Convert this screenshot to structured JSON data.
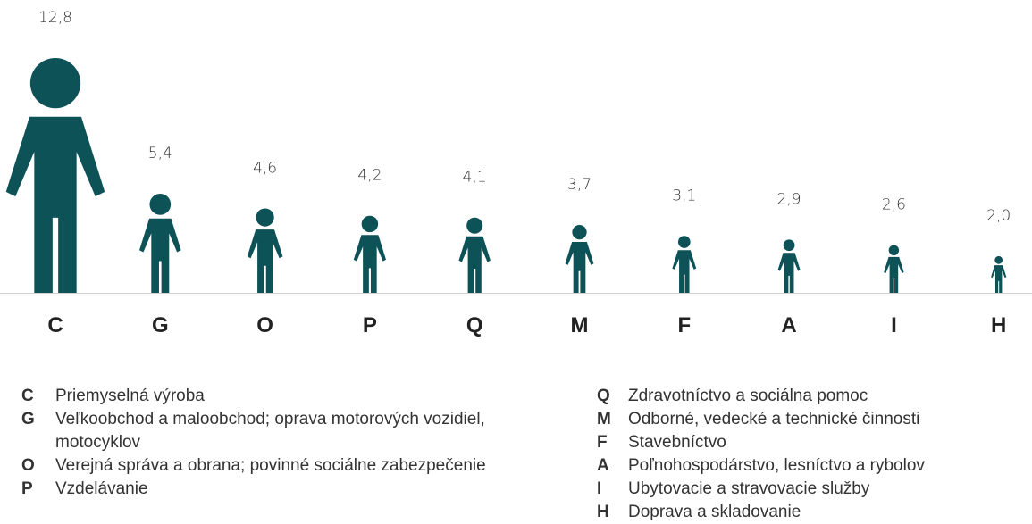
{
  "chart_data": {
    "type": "pictogram",
    "categories": [
      "C",
      "G",
      "O",
      "P",
      "Q",
      "M",
      "F",
      "A",
      "I",
      "H"
    ],
    "values": [
      12.8,
      5.4,
      4.6,
      4.2,
      4.1,
      3.7,
      3.1,
      2.9,
      2.6,
      2.0
    ],
    "value_labels": [
      "12,8",
      "5,4",
      "4,6",
      "4,2",
      "4,1",
      "3,7",
      "3,1",
      "2,9",
      "2,6",
      "2,0"
    ],
    "color": "#0d5257",
    "legend": [
      [
        {
          "code": "C",
          "label": "Priemyselná výroba"
        },
        {
          "code": "G",
          "label": "Veľkoobchod a maloobchod; oprava motorových vozidiel, motocyklov"
        },
        {
          "code": "O",
          "label": "Verejná správa a obrana; povinné sociálne zabezpečenie"
        },
        {
          "code": "P",
          "label": "Vzdelávanie"
        }
      ],
      [
        {
          "code": "Q",
          "label": "Zdravotníctvo a sociálna pomoc"
        },
        {
          "code": "M",
          "label": "Odborné, vedecké a technické činnosti"
        },
        {
          "code": "F",
          "label": "Stavebníctvo"
        },
        {
          "code": "A",
          "label": "Poľnohospodárstvo, lesníctvo a rybolov"
        },
        {
          "code": "I",
          "label": "Ubytovacie a stravovacie služby"
        },
        {
          "code": "H",
          "label": "Doprava a skladovanie"
        }
      ]
    ]
  }
}
